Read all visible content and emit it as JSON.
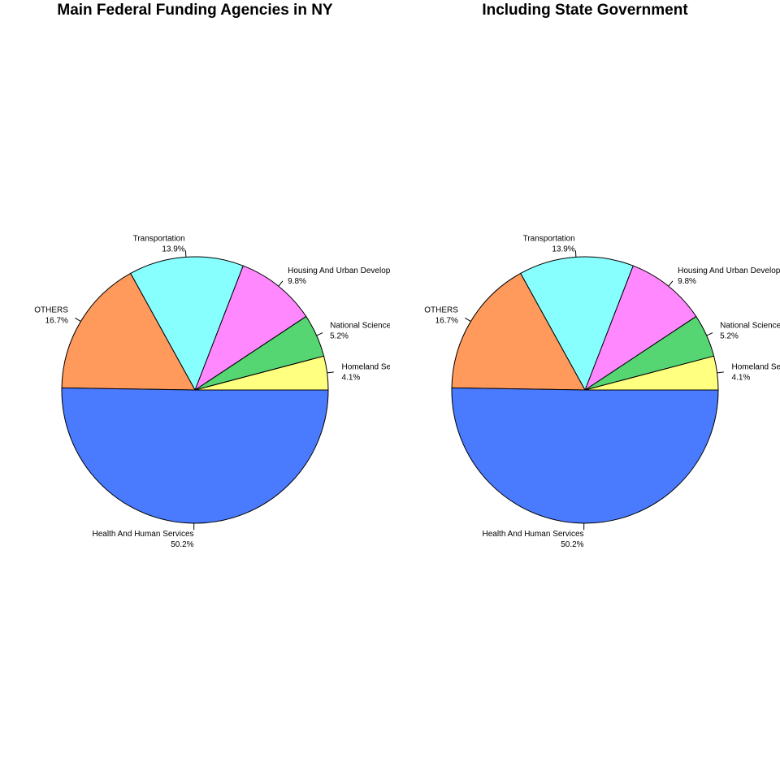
{
  "chart_data": [
    {
      "type": "pie",
      "title": "Main Federal Funding Agencies in NY",
      "slices": [
        {
          "label": "Homeland Security",
          "percent_label": "4.1%",
          "value": 4.1,
          "color": "#FFFF80"
        },
        {
          "label": "National Science Foundation",
          "percent_label": "5.2%",
          "value": 5.2,
          "color": "#55D673"
        },
        {
          "label": "Housing And Urban Development",
          "percent_label": "9.8%",
          "value": 9.8,
          "color": "#FF88FF"
        },
        {
          "label": "Transportation",
          "percent_label": "13.9%",
          "value": 13.9,
          "color": "#88FFFF"
        },
        {
          "label": "OTHERS",
          "percent_label": "16.7%",
          "value": 16.7,
          "color": "#FF9A5C"
        },
        {
          "label": "Health And Human Services",
          "percent_label": "50.2%",
          "value": 50.2,
          "color": "#4A7BFF"
        }
      ],
      "start_angle_deg": 0,
      "direction": "counterclockwise",
      "edge_color": "#000000"
    },
    {
      "type": "pie",
      "title": "Including State Government",
      "slices": [
        {
          "label": "Homeland Security",
          "percent_label": "4.1%",
          "value": 4.1,
          "color": "#FFFF80"
        },
        {
          "label": "National Science Foundation",
          "percent_label": "5.2%",
          "value": 5.2,
          "color": "#55D673"
        },
        {
          "label": "Housing And Urban Development",
          "percent_label": "9.8%",
          "value": 9.8,
          "color": "#FF88FF"
        },
        {
          "label": "Transportation",
          "percent_label": "13.9%",
          "value": 13.9,
          "color": "#88FFFF"
        },
        {
          "label": "OTHERS",
          "percent_label": "16.7%",
          "value": 16.7,
          "color": "#FF9A5C"
        },
        {
          "label": "Health And Human Services",
          "percent_label": "50.2%",
          "value": 50.2,
          "color": "#4A7BFF"
        }
      ],
      "start_angle_deg": 0,
      "direction": "counterclockwise",
      "edge_color": "#000000"
    }
  ]
}
